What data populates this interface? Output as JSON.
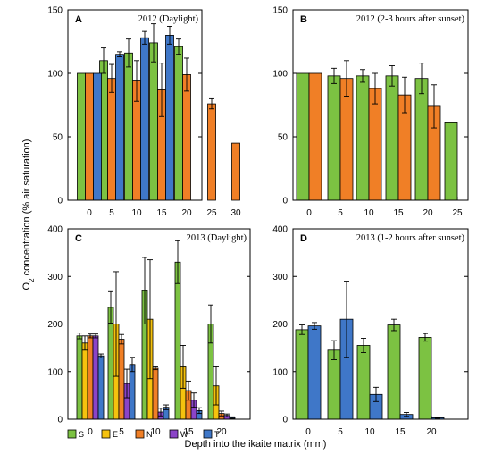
{
  "figure": {
    "ylabel": "O2 concentration (% air saturation)",
    "ylabel_main": "O",
    "ylabel_sub": "2",
    "ylabel_rest": " concentration (% air saturation)",
    "xlabel": "Depth into the ikaite matrix (mm)"
  },
  "legend": [
    {
      "key": "S",
      "label": "S",
      "color": "#7cc242"
    },
    {
      "key": "E",
      "label": "E",
      "color": "#f5c20e"
    },
    {
      "key": "N",
      "label": "N",
      "color": "#f07f26"
    },
    {
      "key": "W",
      "label": "W",
      "color": "#8b44c8"
    },
    {
      "key": "T",
      "label": "T",
      "color": "#3f77c8"
    }
  ],
  "chart_data": [
    {
      "type": "bar",
      "panel": "A",
      "title": "2012 (Daylight)",
      "categories": [
        "0",
        "5",
        "10",
        "15",
        "20",
        "25",
        "30"
      ],
      "series_order": [
        "S",
        "N",
        "T"
      ],
      "ylim": [
        0,
        150
      ],
      "yticks": [
        0,
        50,
        100,
        150
      ],
      "series": [
        {
          "key": "S",
          "values": [
            100,
            110,
            116,
            124,
            121,
            null,
            null
          ],
          "errors": [
            0,
            10,
            11,
            15,
            6,
            null,
            null
          ]
        },
        {
          "key": "N",
          "values": [
            100,
            96,
            94,
            87,
            99,
            76,
            45
          ],
          "errors": [
            0,
            11,
            16,
            21,
            13,
            4,
            0
          ]
        },
        {
          "key": "T",
          "values": [
            100,
            115,
            128,
            130,
            null,
            null,
            null
          ],
          "errors": [
            0,
            2,
            5,
            7,
            null,
            null,
            null
          ]
        }
      ]
    },
    {
      "type": "bar",
      "panel": "B",
      "title": "2012 (2-3 hours after sunset)",
      "categories": [
        "0",
        "5",
        "10",
        "15",
        "20",
        "25"
      ],
      "series_order": [
        "S",
        "N"
      ],
      "ylim": [
        0,
        150
      ],
      "yticks": [
        0,
        50,
        100,
        150
      ],
      "series": [
        {
          "key": "S",
          "values": [
            100,
            98,
            98,
            98,
            96,
            61
          ],
          "errors": [
            0,
            6,
            5,
            8,
            12,
            0
          ]
        },
        {
          "key": "N",
          "values": [
            100,
            96,
            88,
            83,
            74,
            null
          ],
          "errors": [
            0,
            14,
            12,
            14,
            17,
            null
          ]
        }
      ]
    },
    {
      "type": "bar",
      "panel": "C",
      "title": "2013 (Daylight)",
      "categories": [
        "0",
        "5",
        "10",
        "15",
        "20"
      ],
      "series_order": [
        "S",
        "E",
        "N",
        "W",
        "T"
      ],
      "ylim": [
        0,
        400
      ],
      "yticks": [
        0,
        100,
        200,
        300,
        400
      ],
      "series": [
        {
          "key": "S",
          "values": [
            175,
            235,
            270,
            330,
            200
          ],
          "errors": [
            6,
            33,
            70,
            45,
            40
          ]
        },
        {
          "key": "E",
          "values": [
            160,
            200,
            210,
            110,
            70
          ],
          "errors": [
            15,
            110,
            125,
            45,
            40
          ]
        },
        {
          "key": "N",
          "values": [
            175,
            168,
            107,
            60,
            12
          ],
          "errors": [
            4,
            10,
            3,
            20,
            5
          ]
        },
        {
          "key": "W",
          "values": [
            175,
            75,
            15,
            40,
            8
          ],
          "errors": [
            4,
            30,
            8,
            15,
            3
          ]
        },
        {
          "key": "T",
          "values": [
            133,
            115,
            25,
            18,
            3
          ],
          "errors": [
            4,
            15,
            5,
            6,
            2
          ]
        }
      ]
    },
    {
      "type": "bar",
      "panel": "D",
      "title": "2013 (1-2 hours after sunset)",
      "categories": [
        "0",
        "5",
        "10",
        "15",
        "20"
      ],
      "series_order": [
        "S",
        "T"
      ],
      "ylim": [
        0,
        400
      ],
      "yticks": [
        0,
        100,
        200,
        300,
        400
      ],
      "series": [
        {
          "key": "S",
          "values": [
            188,
            145,
            155,
            198,
            172
          ],
          "errors": [
            10,
            20,
            15,
            12,
            8
          ]
        },
        {
          "key": "T",
          "values": [
            196,
            210,
            52,
            10,
            3
          ],
          "errors": [
            7,
            80,
            15,
            4,
            1
          ]
        }
      ]
    }
  ]
}
